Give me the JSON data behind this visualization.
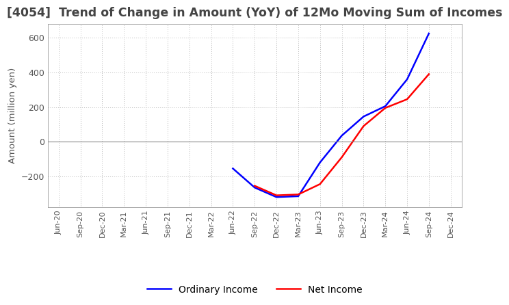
{
  "title": "[4054]  Trend of Change in Amount (YoY) of 12Mo Moving Sum of Incomes",
  "ylabel": "Amount (million yen)",
  "x_labels": [
    "Jun-20",
    "Sep-20",
    "Dec-20",
    "Mar-21",
    "Jun-21",
    "Sep-21",
    "Dec-21",
    "Mar-22",
    "Jun-22",
    "Sep-22",
    "Dec-22",
    "Mar-23",
    "Jun-23",
    "Sep-23",
    "Dec-23",
    "Mar-24",
    "Jun-24",
    "Sep-24",
    "Dec-24"
  ],
  "ordinary_income": [
    null,
    null,
    null,
    null,
    null,
    null,
    null,
    null,
    -155,
    -265,
    -320,
    -315,
    -120,
    35,
    145,
    205,
    360,
    625,
    null
  ],
  "net_income": [
    null,
    null,
    null,
    null,
    null,
    null,
    null,
    null,
    null,
    -255,
    -310,
    -305,
    -245,
    -90,
    90,
    195,
    245,
    390,
    null
  ],
  "ordinary_color": "#0000ff",
  "net_color": "#ff0000",
  "ylim": [
    -380,
    680
  ],
  "yticks": [
    -200,
    0,
    200,
    400,
    600
  ],
  "background_color": "#ffffff",
  "grid_color": "#bbbbbb"
}
